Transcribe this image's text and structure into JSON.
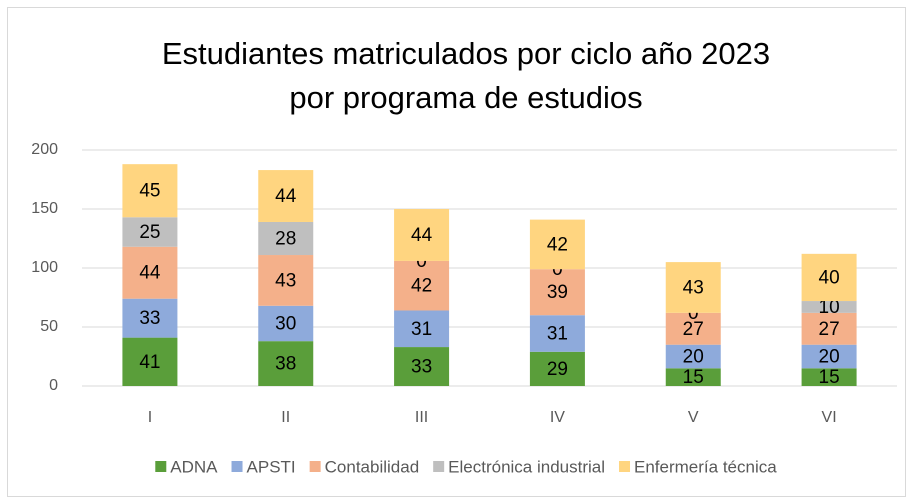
{
  "chart_data": {
    "type": "bar",
    "stacked": true,
    "title": [
      "Estudiantes matriculados por ciclo año 2023",
      "por programa de estudios"
    ],
    "categories": [
      "I",
      "II",
      "III",
      "IV",
      "V",
      "VI"
    ],
    "series": [
      {
        "name": "ADNA",
        "color": "#5a9e3a",
        "values": [
          41,
          38,
          33,
          29,
          15,
          15
        ]
      },
      {
        "name": "APSTI",
        "color": "#8eaadb",
        "values": [
          33,
          30,
          31,
          31,
          20,
          20
        ]
      },
      {
        "name": "Contabilidad",
        "color": "#f4b08a",
        "values": [
          44,
          43,
          42,
          39,
          27,
          27
        ]
      },
      {
        "name": "Electrónica industrial",
        "color": "#bfbfbf",
        "values": [
          25,
          28,
          0,
          0,
          0,
          10
        ]
      },
      {
        "name": "Enfermería técnica",
        "color": "#ffd580",
        "values": [
          45,
          44,
          44,
          42,
          43,
          40
        ]
      }
    ],
    "ylim": [
      0,
      200
    ],
    "yticks": [
      0,
      50,
      100,
      150,
      200
    ],
    "grid": true,
    "legend": "bottom"
  }
}
